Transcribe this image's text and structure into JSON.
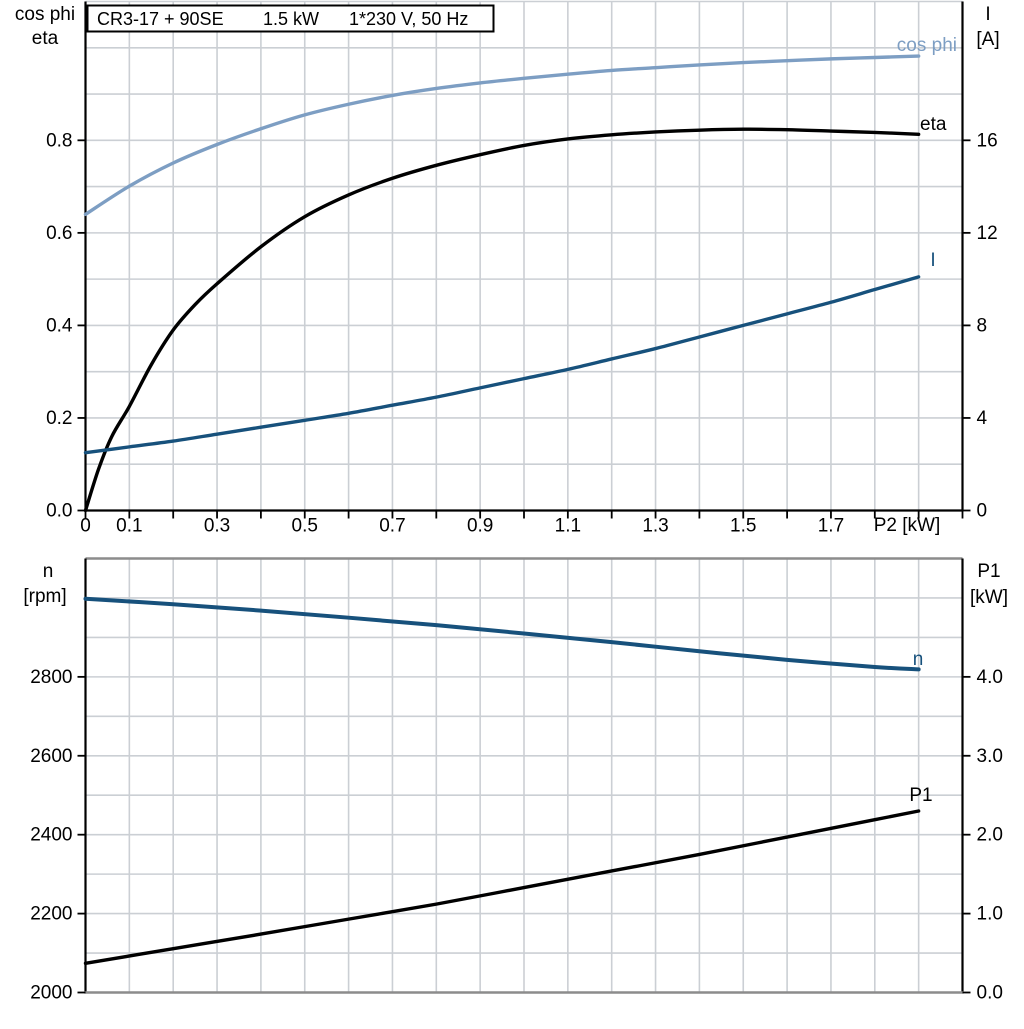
{
  "labels": {
    "top_left_line1": "cos phi",
    "top_left_line2": "eta",
    "top_right_line1": "I",
    "top_right_line2": "[A]",
    "bottom_left_line1": "n",
    "bottom_left_line2": "[rpm]",
    "bottom_right_line1": "P1",
    "bottom_right_line2": "[kW]"
  },
  "colors": {
    "light_blue": "#7D9EC3",
    "dark_blue": "#17517C",
    "black": "#000000",
    "grid": "#cbcfd4",
    "frame_gray": "#8c8c8c"
  },
  "chart_data": [
    {
      "type": "line",
      "title_parts": [
        "CR3-17 + 90SE",
        "1.5 kW",
        "1*230 V, 50 Hz"
      ],
      "xlabel": "P2 [kW]",
      "xlim": [
        0,
        2.0
      ],
      "ylim_left": [
        0,
        1.1
      ],
      "ylim_right": [
        0,
        22
      ],
      "grid": true,
      "x_tick_step": 0.1,
      "x_tick_labels": [
        {
          "v": 0,
          "label": "0"
        },
        {
          "v": 0.1,
          "label": "0.1"
        },
        {
          "v": 0.3,
          "label": "0.3"
        },
        {
          "v": 0.5,
          "label": "0.5"
        },
        {
          "v": 0.7,
          "label": "0.7"
        },
        {
          "v": 0.9,
          "label": "0.9"
        },
        {
          "v": 1.1,
          "label": "1.1"
        },
        {
          "v": 1.3,
          "label": "1.3"
        },
        {
          "v": 1.5,
          "label": "1.5"
        },
        {
          "v": 1.7,
          "label": "1.7"
        }
      ],
      "left_ticks": [
        {
          "v": 0.0,
          "label": "0.0"
        },
        {
          "v": 0.2,
          "label": "0.2"
        },
        {
          "v": 0.4,
          "label": "0.4"
        },
        {
          "v": 0.6,
          "label": "0.6"
        },
        {
          "v": 0.8,
          "label": "0.8"
        }
      ],
      "right_ticks": [
        {
          "v": 0,
          "label": "0"
        },
        {
          "v": 4,
          "label": "4"
        },
        {
          "v": 8,
          "label": "8"
        },
        {
          "v": 12,
          "label": "12"
        },
        {
          "v": 16,
          "label": "16"
        }
      ],
      "series": [
        {
          "name": "cos phi",
          "axis": "left",
          "color": "#7D9EC3",
          "width": 3.4,
          "points": [
            [
              0,
              0.64
            ],
            [
              0.1,
              0.701
            ],
            [
              0.2,
              0.751
            ],
            [
              0.3,
              0.791
            ],
            [
              0.4,
              0.825
            ],
            [
              0.5,
              0.855
            ],
            [
              0.6,
              0.878
            ],
            [
              0.7,
              0.897
            ],
            [
              0.8,
              0.912
            ],
            [
              0.9,
              0.924
            ],
            [
              1.0,
              0.934
            ],
            [
              1.1,
              0.943
            ],
            [
              1.2,
              0.951
            ],
            [
              1.3,
              0.957
            ],
            [
              1.4,
              0.963
            ],
            [
              1.5,
              0.968
            ],
            [
              1.6,
              0.972
            ],
            [
              1.7,
              0.976
            ],
            [
              1.8,
              0.979
            ],
            [
              1.9,
              0.982
            ]
          ]
        },
        {
          "name": "eta",
          "axis": "left",
          "color": "#000000",
          "width": 3.4,
          "points": [
            [
              0,
              0
            ],
            [
              0.03,
              0.09
            ],
            [
              0.06,
              0.16
            ],
            [
              0.1,
              0.225
            ],
            [
              0.15,
              0.315
            ],
            [
              0.2,
              0.39
            ],
            [
              0.25,
              0.445
            ],
            [
              0.3,
              0.49
            ],
            [
              0.4,
              0.57
            ],
            [
              0.5,
              0.635
            ],
            [
              0.6,
              0.682
            ],
            [
              0.7,
              0.718
            ],
            [
              0.8,
              0.746
            ],
            [
              0.9,
              0.769
            ],
            [
              1.0,
              0.789
            ],
            [
              1.1,
              0.803
            ],
            [
              1.2,
              0.812
            ],
            [
              1.3,
              0.818
            ],
            [
              1.4,
              0.822
            ],
            [
              1.5,
              0.824
            ],
            [
              1.6,
              0.823
            ],
            [
              1.7,
              0.82
            ],
            [
              1.8,
              0.817
            ],
            [
              1.9,
              0.813
            ]
          ]
        },
        {
          "name": "I",
          "axis": "right",
          "color": "#17517C",
          "width": 3.4,
          "points": [
            [
              0,
              2.5
            ],
            [
              0.1,
              2.75
            ],
            [
              0.2,
              3.0
            ],
            [
              0.3,
              3.3
            ],
            [
              0.4,
              3.6
            ],
            [
              0.5,
              3.9
            ],
            [
              0.6,
              4.2
            ],
            [
              0.7,
              4.55
            ],
            [
              0.8,
              4.9
            ],
            [
              0.9,
              5.3
            ],
            [
              1.0,
              5.7
            ],
            [
              1.1,
              6.1
            ],
            [
              1.2,
              6.55
            ],
            [
              1.3,
              7.0
            ],
            [
              1.4,
              7.5
            ],
            [
              1.5,
              8.0
            ],
            [
              1.6,
              8.5
            ],
            [
              1.7,
              9.0
            ],
            [
              1.8,
              9.55
            ],
            [
              1.9,
              10.1
            ]
          ]
        }
      ]
    },
    {
      "type": "line",
      "xlabel": "",
      "xlim": [
        0,
        2.0
      ],
      "ylim_left": [
        2000,
        3100
      ],
      "ylim_right": [
        0,
        5.5
      ],
      "grid": true,
      "x_tick_step": 0.1,
      "x_tick_labels": [],
      "left_ticks": [
        {
          "v": 2000,
          "label": "2000"
        },
        {
          "v": 2200,
          "label": "2200"
        },
        {
          "v": 2400,
          "label": "2400"
        },
        {
          "v": 2600,
          "label": "2600"
        },
        {
          "v": 2800,
          "label": "2800"
        }
      ],
      "right_ticks": [
        {
          "v": 0.0,
          "label": "0.0"
        },
        {
          "v": 1.0,
          "label": "1.0"
        },
        {
          "v": 2.0,
          "label": "2.0"
        },
        {
          "v": 3.0,
          "label": "3.0"
        },
        {
          "v": 4.0,
          "label": "4.0"
        }
      ],
      "series": [
        {
          "name": "n",
          "axis": "left",
          "color": "#17517C",
          "width": 4,
          "points": [
            [
              0,
              2998
            ],
            [
              0.2,
              2984
            ],
            [
              0.4,
              2968
            ],
            [
              0.6,
              2950
            ],
            [
              0.8,
              2931
            ],
            [
              1.0,
              2910
            ],
            [
              1.2,
              2888
            ],
            [
              1.4,
              2865
            ],
            [
              1.6,
              2843
            ],
            [
              1.8,
              2825
            ],
            [
              1.9,
              2819
            ]
          ]
        },
        {
          "name": "P1",
          "axis": "right",
          "color": "#000000",
          "width": 3.4,
          "points": [
            [
              0,
              0.37
            ],
            [
              0.2,
              0.555
            ],
            [
              0.4,
              0.74
            ],
            [
              0.6,
              0.93
            ],
            [
              0.8,
              1.12
            ],
            [
              1.0,
              1.33
            ],
            [
              1.2,
              1.54
            ],
            [
              1.4,
              1.75
            ],
            [
              1.6,
              1.97
            ],
            [
              1.8,
              2.19
            ],
            [
              1.9,
              2.3
            ]
          ]
        }
      ]
    }
  ]
}
